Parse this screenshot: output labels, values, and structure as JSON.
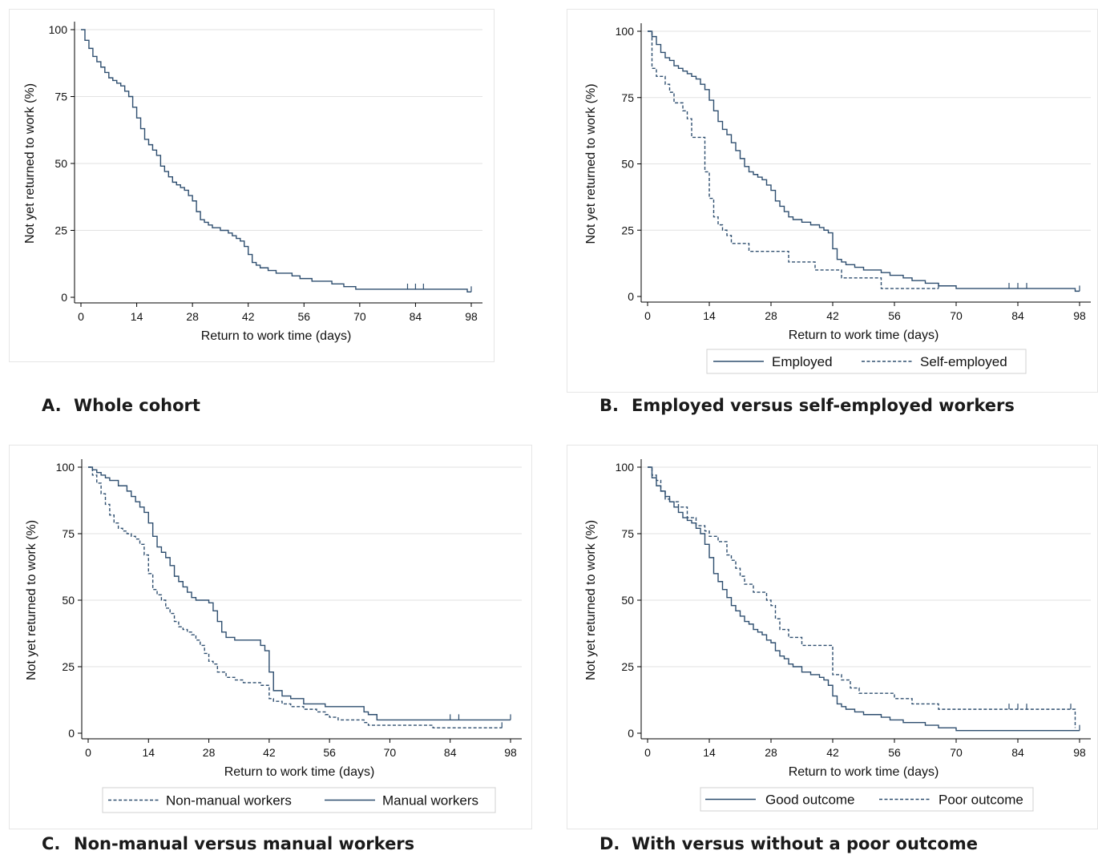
{
  "colors": {
    "line": "#2e4e6f",
    "grid": "#e2e2e2",
    "axis": "#000000"
  },
  "chart_data": [
    {
      "type": "line",
      "panel_label": "A.",
      "caption": "Whole cohort",
      "xlabel": "Return to work time (days)",
      "ylabel": "Not yet returned to work (%)",
      "xlim": [
        0,
        98
      ],
      "ylim": [
        0,
        100
      ],
      "xticks": [
        0,
        14,
        28,
        42,
        56,
        70,
        84,
        98
      ],
      "yticks": [
        0,
        25,
        50,
        75,
        100
      ],
      "grid": true,
      "legend": null,
      "series": [
        {
          "dash": "solid",
          "x": [
            0,
            1,
            2,
            3,
            4,
            5,
            6,
            7,
            8,
            9,
            10,
            11,
            12,
            13,
            14,
            15,
            16,
            17,
            18,
            19,
            20,
            21,
            22,
            23,
            24,
            25,
            26,
            27,
            28,
            29,
            30,
            31,
            32,
            33,
            35,
            37,
            38,
            39,
            40,
            41,
            42,
            43,
            44,
            45,
            47,
            49,
            50,
            53,
            55,
            56,
            58,
            60,
            63,
            64,
            66,
            67,
            69,
            70,
            84,
            91,
            96,
            97,
            98
          ],
          "y": [
            100,
            96,
            93,
            90,
            88,
            86,
            84,
            82,
            81,
            80,
            79,
            77,
            75,
            71,
            67,
            63,
            59,
            57,
            55,
            53,
            49,
            47,
            45,
            43,
            42,
            41,
            40,
            38,
            36,
            32,
            29,
            28,
            27,
            26,
            25,
            24,
            23,
            22,
            21,
            19,
            16,
            13,
            12,
            11,
            10,
            9,
            9,
            8,
            7,
            7,
            6,
            6,
            5,
            5,
            4,
            4,
            3,
            3,
            3,
            3,
            3,
            2,
            2
          ]
        }
      ],
      "censor": [
        {
          "series": 0,
          "x": [
            82,
            84,
            86,
            98
          ]
        }
      ]
    },
    {
      "type": "line",
      "panel_label": "B.",
      "caption": "Employed versus self-employed workers",
      "xlabel": "Return to work time (days)",
      "ylabel": "Not yet returned to work (%)",
      "xlim": [
        0,
        98
      ],
      "ylim": [
        0,
        100
      ],
      "xticks": [
        0,
        14,
        28,
        42,
        56,
        70,
        84,
        98
      ],
      "yticks": [
        0,
        25,
        50,
        75,
        100
      ],
      "grid": true,
      "legend": "bottom",
      "series": [
        {
          "name": "Employed",
          "dash": "solid",
          "x": [
            0,
            1,
            2,
            3,
            4,
            5,
            6,
            7,
            8,
            9,
            10,
            11,
            12,
            13,
            14,
            15,
            16,
            17,
            18,
            19,
            20,
            21,
            22,
            23,
            24,
            25,
            26,
            27,
            28,
            29,
            30,
            31,
            32,
            33,
            35,
            37,
            38,
            39,
            40,
            41,
            42,
            43,
            44,
            45,
            47,
            49,
            50,
            53,
            55,
            56,
            58,
            60,
            63,
            64,
            66,
            67,
            69,
            70,
            84,
            91,
            96,
            97,
            98
          ],
          "y": [
            100,
            98,
            95,
            92,
            90,
            89,
            87,
            86,
            85,
            84,
            83,
            82,
            80,
            78,
            74,
            70,
            66,
            63,
            61,
            58,
            55,
            52,
            49,
            47,
            46,
            45,
            44,
            42,
            40,
            36,
            34,
            32,
            30,
            29,
            28,
            27,
            27,
            26,
            25,
            24,
            18,
            14,
            13,
            12,
            11,
            10,
            10,
            9,
            8,
            8,
            7,
            6,
            5,
            5,
            4,
            4,
            4,
            3,
            3,
            3,
            3,
            2,
            2
          ]
        },
        {
          "name": "Self-employed",
          "dash": "dashed",
          "x": [
            0,
            1,
            2,
            4,
            5,
            6,
            8,
            9,
            10,
            11,
            12,
            13,
            14,
            15,
            16,
            17,
            18,
            19,
            20,
            23,
            28,
            32,
            38,
            42,
            44,
            48,
            53,
            60,
            64,
            66
          ],
          "y": [
            100,
            86,
            83,
            80,
            77,
            73,
            70,
            67,
            60,
            60,
            60,
            47,
            37,
            30,
            27,
            25,
            23,
            20,
            20,
            17,
            17,
            13,
            10,
            10,
            7,
            7,
            3,
            3,
            3,
            3
          ]
        }
      ],
      "censor": [
        {
          "series": 0,
          "x": [
            82,
            84,
            86,
            98
          ]
        },
        {
          "series": 1,
          "x": [
            66
          ]
        }
      ]
    },
    {
      "type": "line",
      "panel_label": "C.",
      "caption": "Non-manual versus manual workers",
      "xlabel": "Return to work time (days)",
      "ylabel": "Not yet returned to work (%)",
      "xlim": [
        0,
        98
      ],
      "ylim": [
        0,
        100
      ],
      "xticks": [
        0,
        14,
        28,
        42,
        56,
        70,
        84,
        98
      ],
      "yticks": [
        0,
        25,
        50,
        75,
        100
      ],
      "grid": true,
      "legend": "bottom",
      "series": [
        {
          "name": "Non-manual workers",
          "dash": "dashed",
          "x": [
            0,
            1,
            2,
            3,
            4,
            5,
            6,
            7,
            8,
            9,
            10,
            11,
            12,
            13,
            14,
            15,
            16,
            17,
            18,
            19,
            20,
            21,
            22,
            23,
            24,
            25,
            26,
            27,
            28,
            29,
            30,
            32,
            34,
            36,
            40,
            42,
            43,
            45,
            47,
            50,
            53,
            55,
            56,
            58,
            60,
            64,
            65,
            70,
            80,
            90,
            96
          ],
          "y": [
            100,
            97,
            94,
            90,
            86,
            82,
            79,
            77,
            76,
            75,
            74,
            73,
            71,
            67,
            60,
            54,
            52,
            50,
            47,
            45,
            42,
            40,
            39,
            38,
            37,
            35,
            33,
            30,
            27,
            26,
            23,
            21,
            20,
            19,
            18,
            13,
            12,
            11,
            10,
            9,
            8,
            7,
            6,
            5,
            5,
            4,
            3,
            3,
            2,
            2,
            2
          ]
        },
        {
          "name": "Manual workers",
          "dash": "solid",
          "x": [
            0,
            1,
            2,
            3,
            4,
            5,
            7,
            9,
            10,
            11,
            12,
            13,
            14,
            15,
            16,
            17,
            18,
            19,
            20,
            21,
            22,
            23,
            24,
            25,
            27,
            28,
            29,
            30,
            31,
            32,
            34,
            36,
            38,
            40,
            41,
            42,
            43,
            45,
            47,
            50,
            53,
            55,
            56,
            60,
            64,
            65,
            67,
            70,
            98
          ],
          "y": [
            100,
            99,
            98,
            97,
            96,
            95,
            93,
            91,
            89,
            87,
            85,
            83,
            79,
            74,
            70,
            68,
            66,
            63,
            59,
            57,
            55,
            53,
            51,
            50,
            50,
            49,
            46,
            42,
            38,
            36,
            35,
            35,
            35,
            33,
            31,
            23,
            16,
            14,
            13,
            11,
            11,
            10,
            10,
            10,
            8,
            7,
            5,
            5,
            5
          ]
        }
      ],
      "censor": [
        {
          "series": 1,
          "x": [
            84,
            86,
            98
          ]
        },
        {
          "series": 0,
          "x": [
            96
          ]
        }
      ]
    },
    {
      "type": "line",
      "panel_label": "D.",
      "caption": "With versus without a poor outcome",
      "xlabel": "Return to work time (days)",
      "ylabel": "Not yet returned to work (%)",
      "xlim": [
        0,
        98
      ],
      "ylim": [
        0,
        100
      ],
      "xticks": [
        0,
        14,
        28,
        42,
        56,
        70,
        84,
        98
      ],
      "yticks": [
        0,
        25,
        50,
        75,
        100
      ],
      "grid": true,
      "legend": "bottom",
      "series": [
        {
          "name": "Good outcome",
          "dash": "solid",
          "x": [
            0,
            1,
            2,
            3,
            4,
            5,
            6,
            7,
            8,
            9,
            10,
            11,
            12,
            13,
            14,
            15,
            16,
            17,
            18,
            19,
            20,
            21,
            22,
            23,
            24,
            25,
            26,
            27,
            28,
            29,
            30,
            31,
            32,
            33,
            35,
            37,
            38,
            39,
            40,
            41,
            42,
            43,
            44,
            45,
            47,
            49,
            50,
            53,
            55,
            56,
            58,
            60,
            63,
            64,
            66,
            67,
            69,
            70,
            72,
            98
          ],
          "y": [
            100,
            96,
            93,
            91,
            89,
            87,
            85,
            83,
            81,
            80,
            79,
            77,
            75,
            71,
            66,
            60,
            57,
            54,
            51,
            48,
            46,
            44,
            42,
            41,
            39,
            38,
            37,
            35,
            34,
            31,
            29,
            28,
            26,
            25,
            23,
            22,
            22,
            21,
            20,
            18,
            14,
            11,
            10,
            9,
            8,
            7,
            7,
            6,
            5,
            5,
            4,
            4,
            3,
            3,
            2,
            2,
            2,
            1,
            1,
            1
          ]
        },
        {
          "name": "Poor outcome",
          "dash": "dashed",
          "x": [
            0,
            1,
            2,
            3,
            4,
            5,
            7,
            9,
            11,
            13,
            14,
            16,
            18,
            19,
            20,
            21,
            22,
            24,
            27,
            28,
            29,
            30,
            32,
            35,
            42,
            44,
            46,
            48,
            52,
            56,
            58,
            60,
            63,
            64,
            66,
            70,
            84,
            90,
            96,
            97
          ],
          "y": [
            100,
            97,
            95,
            91,
            88,
            87,
            85,
            81,
            78,
            76,
            74,
            72,
            67,
            65,
            62,
            59,
            56,
            53,
            50,
            48,
            43,
            39,
            36,
            33,
            22,
            20,
            17,
            15,
            15,
            13,
            13,
            11,
            11,
            11,
            9,
            9,
            9,
            9,
            9,
            2
          ]
        }
      ],
      "censor": [
        {
          "series": 1,
          "x": [
            82,
            84,
            86
          ]
        },
        {
          "series": 1,
          "x": [
            96
          ]
        },
        {
          "series": 0,
          "x": [
            98
          ]
        }
      ]
    }
  ]
}
